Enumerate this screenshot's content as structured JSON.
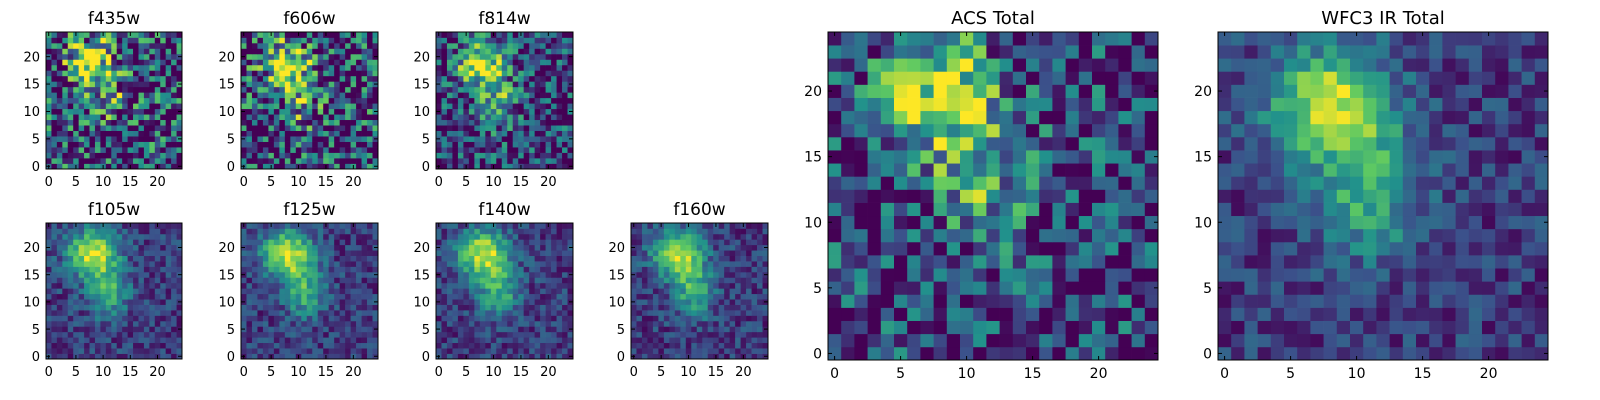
{
  "figure": {
    "colormap": [
      "#440154",
      "#3b528b",
      "#21918c",
      "#5ec962",
      "#fde725"
    ],
    "frame_color": "#000000"
  },
  "chart_data": [
    {
      "type": "heatmap",
      "title": "f435w",
      "grid": false,
      "xlim": [
        -0.5,
        24.5
      ],
      "ylim": [
        -0.5,
        24.5
      ],
      "xticks": [
        0,
        5,
        10,
        15,
        20
      ],
      "yticks": [
        0,
        5,
        10,
        15,
        20
      ],
      "peak": {
        "x": 7.5,
        "y": 19.5
      },
      "contrast": "low"
    },
    {
      "type": "heatmap",
      "title": "f606w",
      "grid": false,
      "xlim": [
        -0.5,
        24.5
      ],
      "ylim": [
        -0.5,
        24.5
      ],
      "xticks": [
        0,
        5,
        10,
        15,
        20
      ],
      "yticks": [
        0,
        5,
        10,
        15,
        20
      ],
      "peak": {
        "x": 7.5,
        "y": 19
      },
      "contrast": "low"
    },
    {
      "type": "heatmap",
      "title": "f814w",
      "grid": false,
      "xlim": [
        -0.5,
        24.5
      ],
      "ylim": [
        -0.5,
        24.5
      ],
      "xticks": [
        0,
        5,
        10,
        15,
        20
      ],
      "yticks": [
        0,
        5,
        10,
        15,
        20
      ],
      "peak": {
        "x": 7.5,
        "y": 19
      },
      "contrast": "medium"
    },
    {
      "type": "heatmap",
      "title": "f105w",
      "grid": false,
      "xlim": [
        -0.5,
        24.5
      ],
      "ylim": [
        -0.5,
        24.5
      ],
      "xticks": [
        0,
        5,
        10,
        15,
        20
      ],
      "yticks": [
        0,
        5,
        10,
        15,
        20
      ],
      "peak": {
        "x": 8,
        "y": 19
      },
      "contrast": "high"
    },
    {
      "type": "heatmap",
      "title": "f125w",
      "grid": false,
      "xlim": [
        -0.5,
        24.5
      ],
      "ylim": [
        -0.5,
        24.5
      ],
      "xticks": [
        0,
        5,
        10,
        15,
        20
      ],
      "yticks": [
        0,
        5,
        10,
        15,
        20
      ],
      "peak": {
        "x": 8,
        "y": 19
      },
      "contrast": "high"
    },
    {
      "type": "heatmap",
      "title": "f140w",
      "grid": false,
      "xlim": [
        -0.5,
        24.5
      ],
      "ylim": [
        -0.5,
        24.5
      ],
      "xticks": [
        0,
        5,
        10,
        15,
        20
      ],
      "yticks": [
        0,
        5,
        10,
        15,
        20
      ],
      "peak": {
        "x": 8,
        "y": 19
      },
      "contrast": "high"
    },
    {
      "type": "heatmap",
      "title": "f160w",
      "grid": false,
      "xlim": [
        -0.5,
        24.5
      ],
      "ylim": [
        -0.5,
        24.5
      ],
      "xticks": [
        0,
        5,
        10,
        15,
        20
      ],
      "yticks": [
        0,
        5,
        10,
        15,
        20
      ],
      "peak": {
        "x": 8,
        "y": 19
      },
      "contrast": "high"
    },
    {
      "type": "heatmap",
      "title": "ACS Total",
      "grid": false,
      "xlim": [
        -0.5,
        24.5
      ],
      "ylim": [
        -0.5,
        24.5
      ],
      "xticks": [
        0,
        5,
        10,
        15,
        20
      ],
      "yticks": [
        0,
        5,
        10,
        15,
        20
      ],
      "peak": {
        "x": 8,
        "y": 20
      },
      "contrast": "medium"
    },
    {
      "type": "heatmap",
      "title": "WFC3 IR Total",
      "grid": false,
      "xlim": [
        -0.5,
        24.5
      ],
      "ylim": [
        -0.5,
        24.5
      ],
      "xticks": [
        0,
        5,
        10,
        15,
        20
      ],
      "yticks": [
        0,
        5,
        10,
        15,
        20
      ],
      "peak": {
        "x": 8,
        "y": 19
      },
      "contrast": "high"
    }
  ]
}
